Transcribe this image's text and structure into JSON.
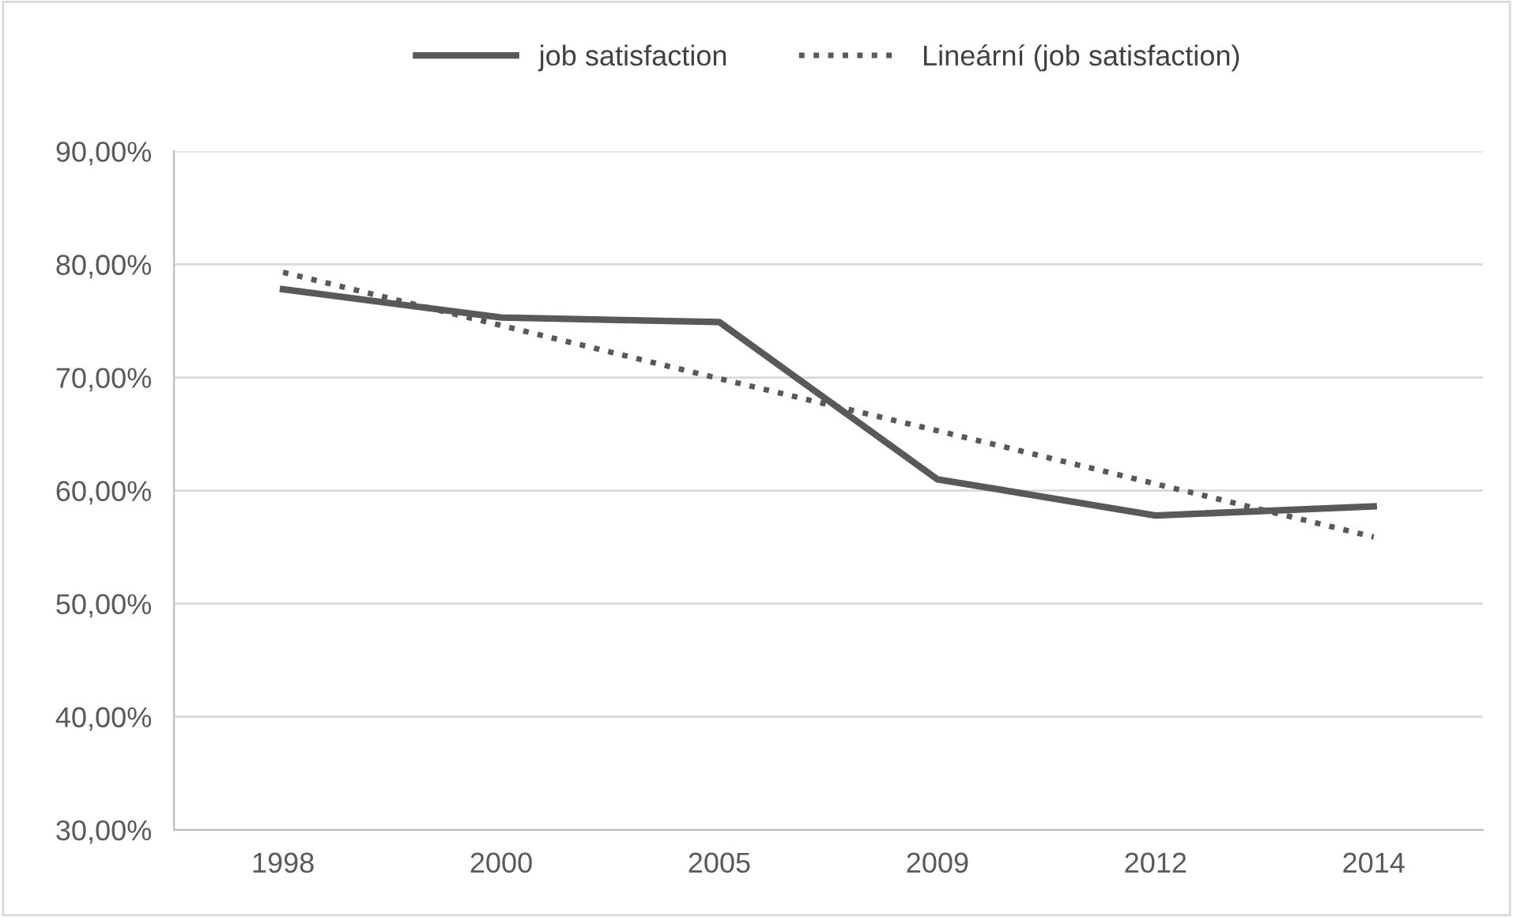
{
  "chart_data": {
    "type": "line",
    "categories": [
      "1998",
      "2000",
      "2005",
      "2009",
      "2012",
      "2014"
    ],
    "series": [
      {
        "name": "job satisfaction",
        "color": "#595959",
        "values": [
          77.8,
          75.3,
          74.9,
          61.0,
          57.8,
          58.6
        ],
        "line_style": "solid"
      },
      {
        "name": "Lineární (job satisfaction)",
        "color": "#595959",
        "values": [
          79.3,
          74.6,
          69.9,
          65.3,
          60.6,
          55.9
        ],
        "line_style": "dotted"
      }
    ],
    "ylim": [
      30,
      90
    ],
    "yticks": [
      {
        "value": 30,
        "label": "30,00%"
      },
      {
        "value": 40,
        "label": "40,00%"
      },
      {
        "value": 50,
        "label": "50,00%"
      },
      {
        "value": 60,
        "label": "60,00%"
      },
      {
        "value": 70,
        "label": "70,00%"
      },
      {
        "value": 80,
        "label": "80,00%"
      },
      {
        "value": 90,
        "label": "90,00%"
      }
    ],
    "grid": "y",
    "legend": "top"
  }
}
